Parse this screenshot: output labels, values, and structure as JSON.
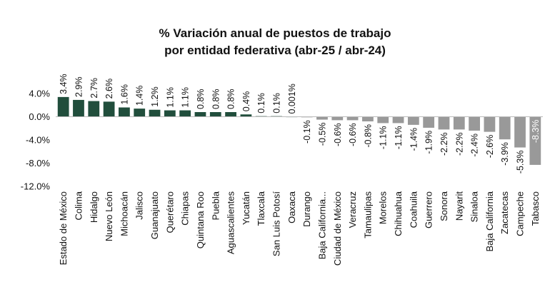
{
  "chart_data": {
    "type": "bar",
    "title": [
      "% Variación anual de puestos de trabajo",
      "por entidad federativa (abr-25 / abr-24)"
    ],
    "xlabel": "",
    "ylabel": "",
    "ylim": [
      -12,
      4
    ],
    "yticks": [
      4,
      0,
      -4,
      -8,
      -12
    ],
    "ytick_labels": [
      "4.0%",
      "0.0%",
      "-4.0%",
      "-8.0%",
      "-12.0%"
    ],
    "grid": false,
    "legend": "none",
    "positive_color": "#214e3c",
    "negative_color": "#999999",
    "categories": [
      "Estado de México",
      "Colima",
      "Hidalgo",
      "Nuevo León",
      "Michoacán",
      "Jalisco",
      "Guanajuato",
      "Querétaro",
      "Chiapas",
      "Quintana Roo",
      "Puebla",
      "Aguascalientes",
      "Yucatán",
      "Tlaxcala",
      "San Luis Potosí",
      "Oaxaca",
      "Durango",
      "Baja California...",
      "Ciudad de México",
      "Veracruz",
      "Tamaulipas",
      "Morelos",
      "Chihuahua",
      "Coahuila",
      "Guerrero",
      "Sonora",
      "Nayarit",
      "Sinaloa",
      "Baja California",
      "Zacatecas",
      "Campeche",
      "Tabasco"
    ],
    "values": [
      3.4,
      2.9,
      2.7,
      2.6,
      1.6,
      1.4,
      1.2,
      1.1,
      1.1,
      0.8,
      0.8,
      0.8,
      0.4,
      0.1,
      0.1,
      0.001,
      -0.1,
      -0.5,
      -0.6,
      -0.6,
      -0.8,
      -1.1,
      -1.1,
      -1.4,
      -1.9,
      -2.2,
      -2.2,
      -2.4,
      -2.6,
      -3.9,
      -5.3,
      -8.3
    ],
    "data_labels": [
      "3.4%",
      "2.9%",
      "2.7%",
      "2.6%",
      "1.6%",
      "1.4%",
      "1.2%",
      "1.1%",
      "1.1%",
      "0.8%",
      "0.8%",
      "0.8%",
      "0.4%",
      "0.1%",
      "0.1%",
      "0.001%",
      "-0.1%",
      "-0.5%",
      "-0.6%",
      "-0.6%",
      "-0.8%",
      "-1.1%",
      "-1.1%",
      "-1.4%",
      "-1.9%",
      "-2.2%",
      "-2.2%",
      "-2.4%",
      "-2.6%",
      "-3.9%",
      "-5.3%",
      "-8.3%"
    ]
  }
}
